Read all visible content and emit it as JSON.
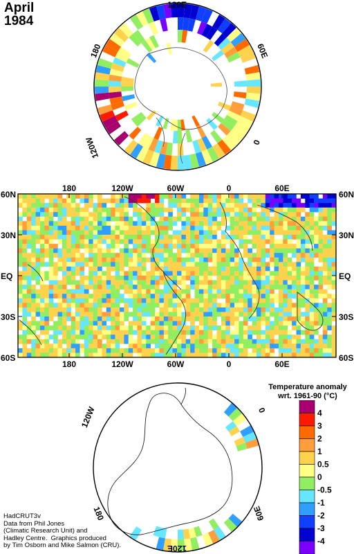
{
  "title": {
    "month": "April",
    "year": "1984"
  },
  "north_polar": {
    "labels": [
      "120E",
      "60E",
      "0",
      "120W",
      "180"
    ]
  },
  "world_map": {
    "lon_labels": [
      "180",
      "120W",
      "60W",
      "0",
      "60E"
    ],
    "lat_labels": [
      "60N",
      "30N",
      "EQ",
      "30S",
      "60S"
    ]
  },
  "south_polar": {
    "labels": [
      "120W",
      "0",
      "180",
      "60E",
      "120E"
    ]
  },
  "legend": {
    "title_line1": "Temperature anomaly",
    "title_line2": "wrt. 1961-90  (°C)",
    "ticks": [
      "4",
      "3",
      "2",
      "1",
      "0.5",
      "0",
      "-0.5",
      "-1",
      "-2",
      "-3",
      "-4"
    ],
    "colors": [
      "#a8006f",
      "#ff1a00",
      "#ff6a00",
      "#ff9e3a",
      "#ffd24d",
      "#ffff85",
      "#90ee60",
      "#66e6ff",
      "#2e9eff",
      "#1040ff",
      "#0000d0",
      "#7a00ff"
    ]
  },
  "credit": {
    "lines": [
      "HadCRUT3v",
      "Data from Phil Jones",
      "(Climatic Research Unit) and",
      "Hadley Centre.  Graphics produced",
      "by Tim Osborn and Mike Salmon (CRU)."
    ]
  }
}
